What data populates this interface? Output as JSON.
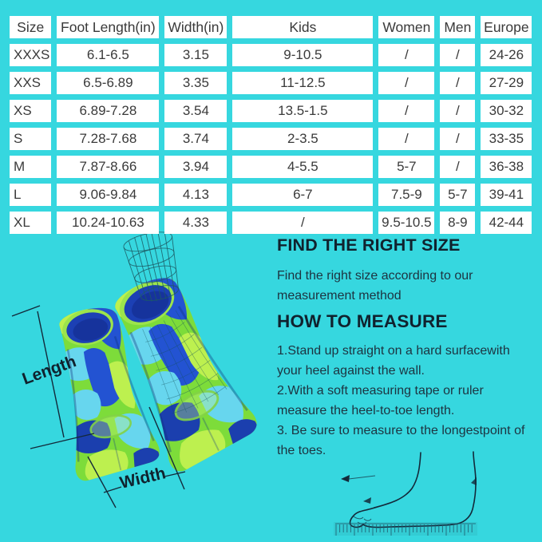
{
  "size_table": {
    "headers": [
      "Size",
      "Foot Length(in)",
      "Width(in)",
      "Kids",
      "Women",
      "Men",
      "Europe"
    ],
    "rows": [
      [
        "XXXS",
        "6.1-6.5",
        "3.15",
        "9-10.5",
        "/",
        "/",
        "24-26"
      ],
      [
        "XXS",
        "6.5-6.89",
        "3.35",
        "11-12.5",
        "/",
        "/",
        "27-29"
      ],
      [
        "XS",
        "6.89-7.28",
        "3.54",
        "13.5-1.5",
        "/",
        "/",
        "30-32"
      ],
      [
        "S",
        "7.28-7.68",
        "3.74",
        "2-3.5",
        "/",
        "/",
        "33-35"
      ],
      [
        "M",
        "7.87-8.66",
        "3.94",
        "4-5.5",
        "5-7",
        "/",
        "36-38"
      ],
      [
        "L",
        "9.06-9.84",
        "4.13",
        "6-7",
        "7.5-9",
        "5-7",
        "39-41"
      ],
      [
        "XL",
        "10.24-10.63",
        "4.33",
        "/",
        "9.5-10.5",
        "8-9",
        "42-44"
      ]
    ]
  },
  "fins_diagram": {
    "length_label": "Length",
    "width_label": "Width"
  },
  "right_size_section": {
    "heading": "FIND THE RIGHT SIZE",
    "body": "Find the right size according to our\nmeasurement method"
  },
  "how_to_measure_section": {
    "heading": "HOW TO MEASURE",
    "steps": "1.Stand up straight on a hard surfacewith\nyour heel against the wall.\n2.With a soft measuring tape or ruler\nmeasure the heel-to-toe length.\n3. Be sure to measure to the longestpoint of\nthe toes."
  },
  "colors": {
    "background": "#36d7df",
    "table_cell_bg": "#ffffff",
    "table_text": "#3a3a3a",
    "heading_text": "#10222e",
    "body_text": "#1d3340",
    "line_color": "#13293a",
    "fin_green": "#7ddc3a",
    "fin_lime": "#bdf04f",
    "fin_blue": "#2353d2",
    "fin_dark_blue": "#1b3fae",
    "fin_cyan": "#67d6ee",
    "ruler_color": "#1f5a6b"
  }
}
